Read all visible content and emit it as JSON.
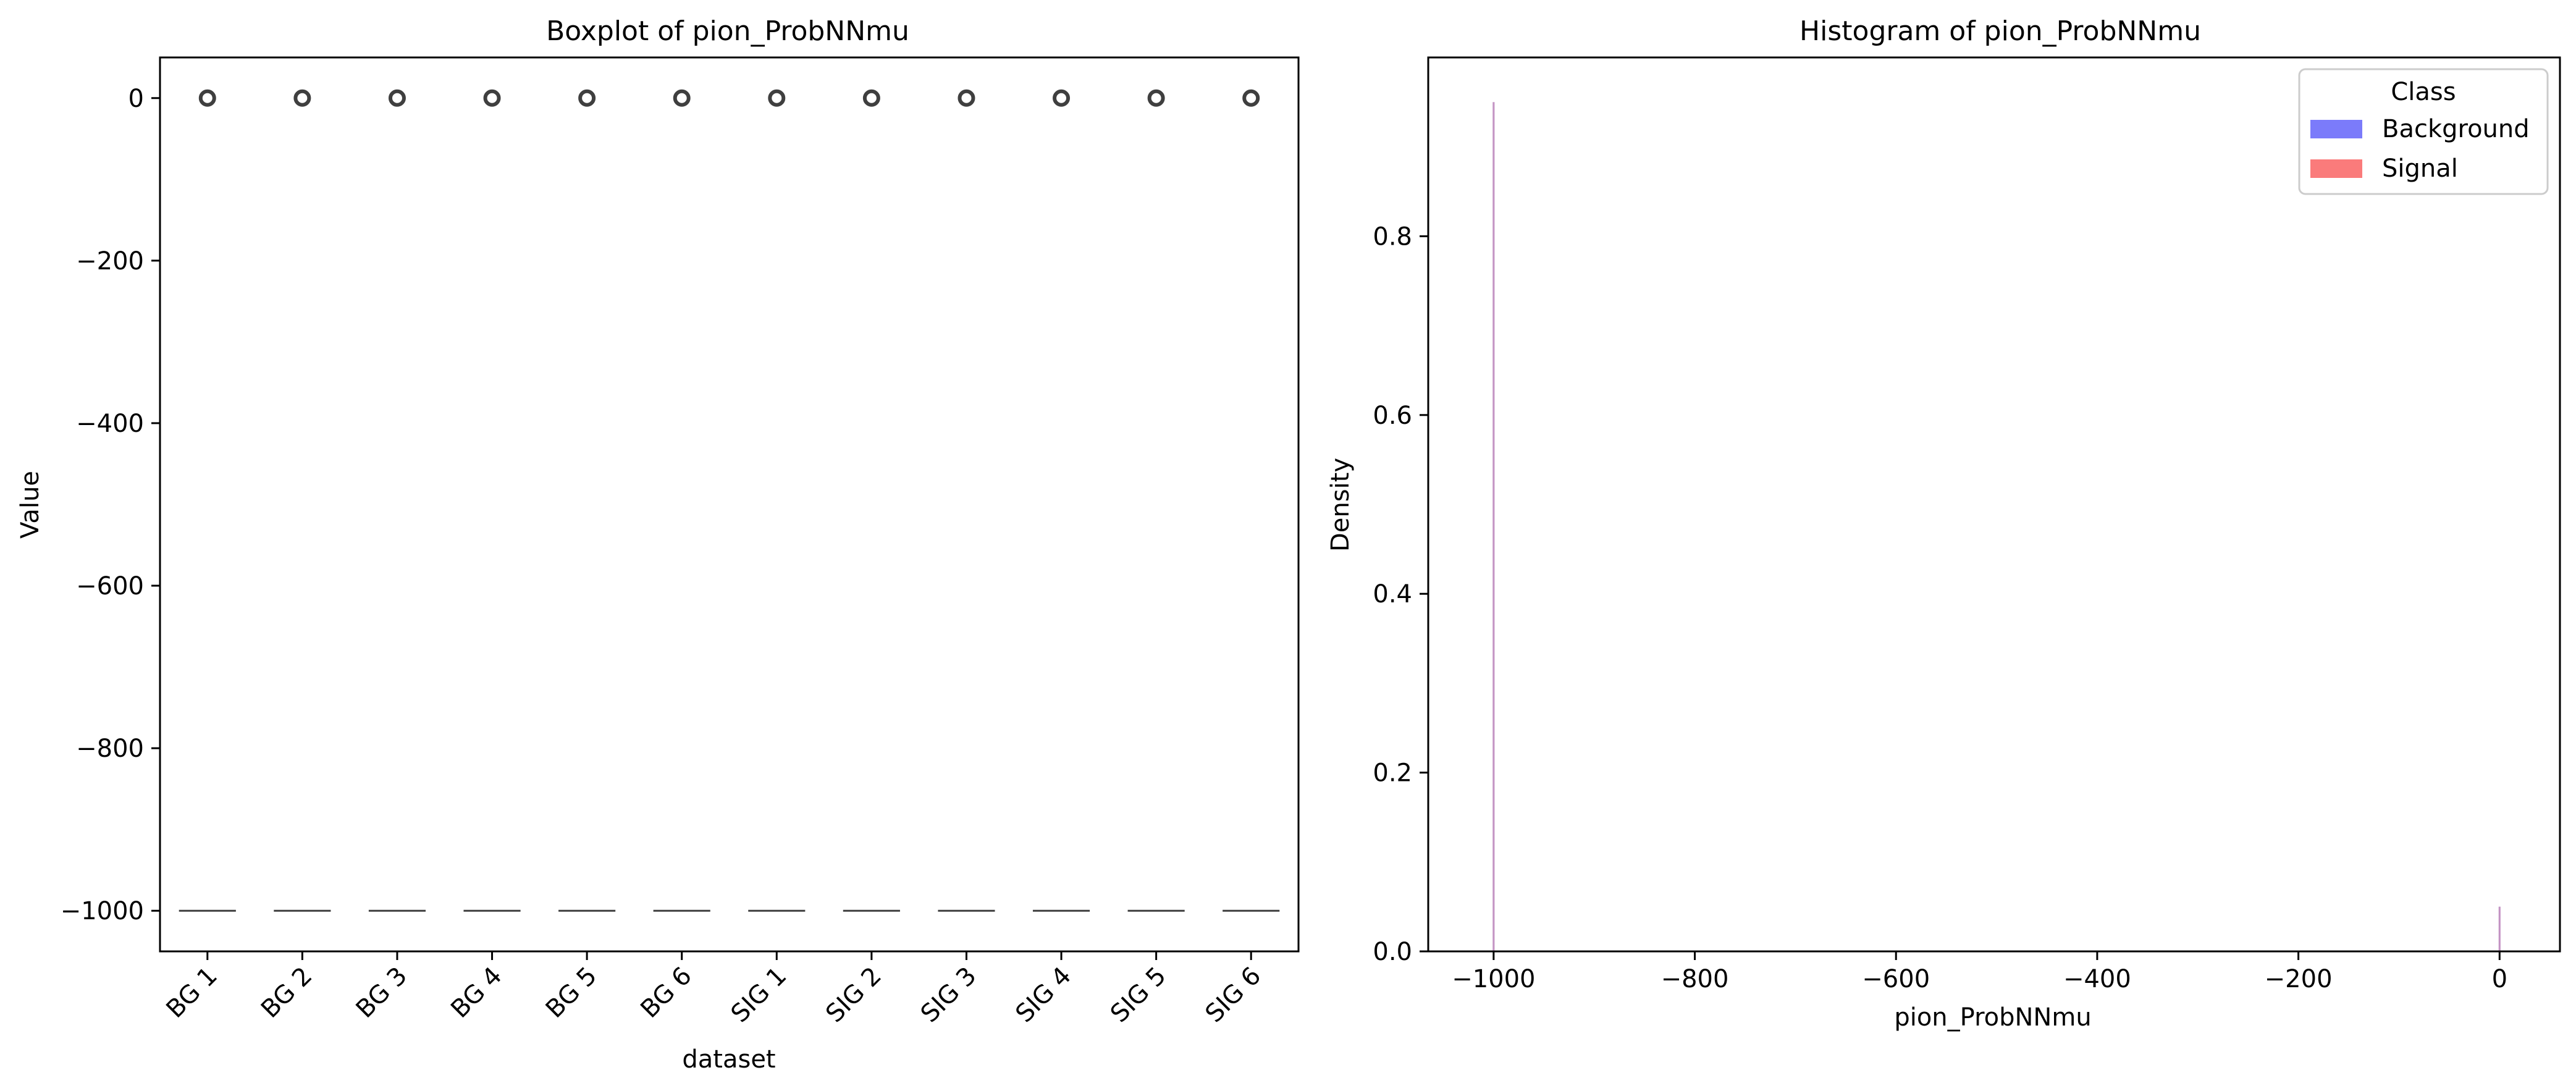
{
  "chart_data": [
    {
      "type": "box",
      "title": "Boxplot of pion_ProbNNmu",
      "xlabel": "dataset",
      "ylabel": "Value",
      "categories": [
        "BG 1",
        "BG 2",
        "BG 3",
        "BG 4",
        "BG 5",
        "BG 6",
        "SIG 1",
        "SIG 2",
        "SIG 3",
        "SIG 4",
        "SIG 5",
        "SIG 6"
      ],
      "median": [
        -1000,
        -1000,
        -1000,
        -1000,
        -1000,
        -1000,
        -1000,
        -1000,
        -1000,
        -1000,
        -1000,
        -1000
      ],
      "q1": [
        -1000,
        -1000,
        -1000,
        -1000,
        -1000,
        -1000,
        -1000,
        -1000,
        -1000,
        -1000,
        -1000,
        -1000
      ],
      "q3": [
        -1000,
        -1000,
        -1000,
        -1000,
        -1000,
        -1000,
        -1000,
        -1000,
        -1000,
        -1000,
        -1000,
        -1000
      ],
      "outliers": [
        [
          0
        ],
        [
          0
        ],
        [
          0
        ],
        [
          0
        ],
        [
          0
        ],
        [
          0
        ],
        [
          0
        ],
        [
          0
        ],
        [
          0
        ],
        [
          0
        ],
        [
          0
        ],
        [
          0
        ]
      ],
      "ylim": [
        -1050,
        50
      ],
      "yticks": [
        0,
        -200,
        -400,
        -600,
        -800,
        -1000
      ],
      "ytick_labels": [
        "0",
        "−200",
        "−400",
        "−600",
        "−800",
        "−1000"
      ]
    },
    {
      "type": "histogram",
      "title": "Histogram of pion_ProbNNmu",
      "xlabel": "pion_ProbNNmu",
      "ylabel": "Density",
      "legend_title": "Class",
      "legend_position": "top-right",
      "series": [
        {
          "name": "Background",
          "color": "#7b7bfa",
          "bars": [
            {
              "x": -1000,
              "density": 0.95
            },
            {
              "x": 0,
              "density": 0.05
            }
          ]
        },
        {
          "name": "Signal",
          "color": "#fa7b7b",
          "bars": [
            {
              "x": -1000,
              "density": 0.95
            },
            {
              "x": 0,
              "density": 0.05
            }
          ]
        }
      ],
      "overlap_color": "#c494c4",
      "xlim": [
        -1065,
        60
      ],
      "ylim": [
        0,
        1.0
      ],
      "xticks": [
        -1000,
        -800,
        -600,
        -400,
        -200,
        0
      ],
      "xtick_labels": [
        "−1000",
        "−800",
        "−600",
        "−400",
        "−200",
        "0"
      ],
      "yticks": [
        0.0,
        0.2,
        0.4,
        0.6,
        0.8
      ],
      "ytick_labels": [
        "0.0",
        "0.2",
        "0.4",
        "0.6",
        "0.8"
      ]
    }
  ]
}
